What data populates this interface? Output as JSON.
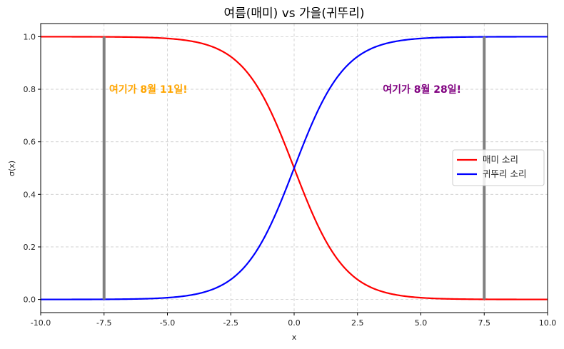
{
  "chart_data": {
    "type": "line",
    "title": "여름(매미) vs 가을(귀뚜리)",
    "xlabel": "x",
    "ylabel": "σ(x)",
    "xlim": [
      -10,
      10
    ],
    "ylim": [
      -0.05,
      1.05
    ],
    "grid": true,
    "legend_position": "center right",
    "x_ticks": [
      "-10.0",
      "-7.5",
      "-5.0",
      "-2.5",
      "0.0",
      "2.5",
      "5.0",
      "7.5",
      "10.0"
    ],
    "y_ticks": [
      "0.0",
      "0.2",
      "0.4",
      "0.6",
      "0.8",
      "1.0"
    ],
    "series": [
      {
        "name": "매미 소리",
        "color": "#ff0000",
        "function": "sigmoid(-x)",
        "x": [
          -10,
          -7.5,
          -5,
          -2.5,
          0,
          2.5,
          5,
          7.5,
          10
        ],
        "values": [
          1.0,
          0.999,
          0.993,
          0.924,
          0.5,
          0.076,
          0.007,
          0.001,
          0.0
        ]
      },
      {
        "name": "귀뚜리 소리",
        "color": "#0000ff",
        "function": "sigmoid(x)",
        "x": [
          -10,
          -7.5,
          -5,
          -2.5,
          0,
          2.5,
          5,
          7.5,
          10
        ],
        "values": [
          0.0,
          0.001,
          0.007,
          0.076,
          0.5,
          0.924,
          0.993,
          0.999,
          1.0
        ]
      }
    ],
    "vlines": [
      {
        "x": -7.5,
        "ymin": 0,
        "ymax": 1.0,
        "color": "#808080"
      },
      {
        "x": 7.5,
        "ymin": 0,
        "ymax": 1.0,
        "color": "#808080"
      }
    ],
    "annotations": [
      {
        "text": "여기가 8월 11일!",
        "x": -7.3,
        "y": 0.8,
        "color": "#ffa500"
      },
      {
        "text": "여기가 8월 28일!",
        "x": 3.5,
        "y": 0.8,
        "color": "#800080"
      }
    ]
  }
}
